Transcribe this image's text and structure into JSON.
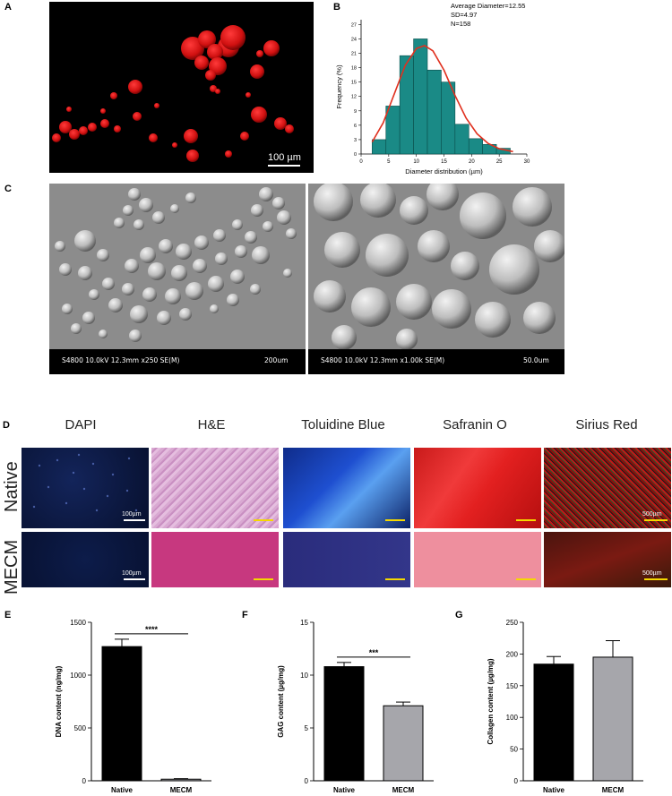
{
  "panels": {
    "A": {
      "label": "A",
      "scale_text": "100 µm"
    },
    "B": {
      "label": "B",
      "stats": [
        "Average Diameter=12.55",
        "SD=4.97",
        "N=158"
      ]
    },
    "C": {
      "label": "C",
      "left_bar": {
        "info": "S4800 10.0kV 12.3mm x250 SE(M)",
        "scale": "200um"
      },
      "right_bar": {
        "info": "S4800 10.0kV 12.3mm x1.00k SE(M)",
        "scale": "50.0um"
      }
    },
    "D": {
      "label": "D",
      "columns": [
        "DAPI",
        "H&E",
        "Toluidine Blue",
        "Safranin O",
        "Sirius Red"
      ],
      "rows": [
        "Native",
        "MECM"
      ],
      "scale_texts": {
        "dapi_native": "100µm",
        "dapi_mecm": "100µm",
        "sirius_native": "500µm",
        "sirius_mecm": "500µm"
      }
    },
    "E": {
      "label": "E"
    },
    "F": {
      "label": "F"
    },
    "G": {
      "label": "G"
    }
  },
  "colors": {
    "teal_bar": "#1a8a86",
    "fit_line": "#e0301e",
    "native_bar": "#000000",
    "mecm_bar": "#a6a6ab",
    "scale_yellow": "#f5d800"
  },
  "chart_data": [
    {
      "id": "B",
      "type": "bar",
      "title": "",
      "xlabel": "Diameter distribution (µm)",
      "ylabel": "Frequency (%)",
      "xlim": [
        0,
        30
      ],
      "ylim": [
        0,
        28
      ],
      "xticks": [
        0,
        5,
        10,
        15,
        20,
        25,
        30
      ],
      "yticks": [
        0,
        3,
        6,
        9,
        12,
        15,
        18,
        21,
        24,
        27
      ],
      "bin_width": 2.5,
      "bin_starts": [
        2,
        4.5,
        7,
        9.5,
        12,
        14.5,
        17,
        19.5,
        22,
        24.5,
        27
      ],
      "values": [
        3,
        10,
        20.5,
        24,
        17.5,
        15,
        6.2,
        3.2,
        2,
        1.2,
        0
      ],
      "fit_curve": {
        "x": [
          2,
          4,
          6,
          8,
          10,
          11.5,
          13,
          15,
          17,
          19,
          21,
          23,
          25,
          27.5
        ],
        "y": [
          2.5,
          6.5,
          12.5,
          18.5,
          22,
          22.6,
          21.5,
          17.5,
          12.2,
          7.5,
          4.2,
          2.2,
          1.1,
          0.5
        ]
      }
    },
    {
      "id": "E",
      "type": "bar",
      "categories": [
        "Native",
        "MECM"
      ],
      "values": [
        1270,
        15
      ],
      "errors": [
        70,
        5
      ],
      "ylabel": "DNA content (ng/mg)",
      "ylim": [
        0,
        1500
      ],
      "yticks": [
        0,
        500,
        1000,
        1500
      ],
      "significance": "****"
    },
    {
      "id": "F",
      "type": "bar",
      "categories": [
        "Native",
        "MECM"
      ],
      "values": [
        10.8,
        7.1
      ],
      "errors": [
        0.4,
        0.35
      ],
      "ylabel": "GAG content (µg/mg)",
      "ylim": [
        0,
        15
      ],
      "yticks": [
        0,
        5,
        10,
        15
      ],
      "significance": "***"
    },
    {
      "id": "G",
      "type": "bar",
      "categories": [
        "Native",
        "MECM"
      ],
      "values": [
        184,
        195
      ],
      "errors": [
        12,
        26
      ],
      "ylabel": "Collagen content (µg/mg)",
      "ylim": [
        0,
        250
      ],
      "yticks": [
        0,
        50,
        100,
        150,
        200,
        250
      ],
      "significance": ""
    }
  ]
}
